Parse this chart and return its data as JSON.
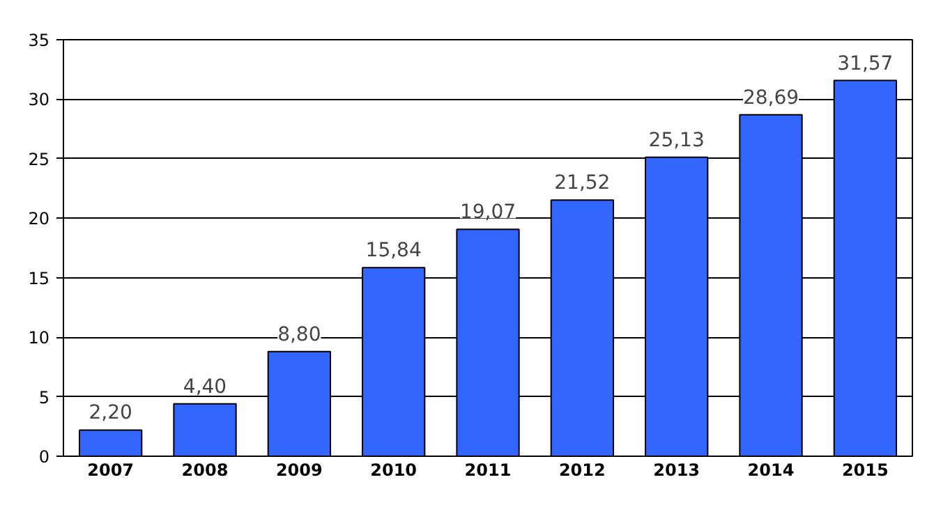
{
  "chart_data": {
    "type": "bar",
    "categories": [
      "2007",
      "2008",
      "2009",
      "2010",
      "2011",
      "2012",
      "2013",
      "2014",
      "2015"
    ],
    "values": [
      2.2,
      4.4,
      8.8,
      15.84,
      19.07,
      21.52,
      25.13,
      28.69,
      31.57
    ],
    "value_labels": [
      "2,20",
      "4,40",
      "8,80",
      "15,84",
      "19,07",
      "21,52",
      "25,13",
      "28,69",
      "31,57"
    ],
    "color": "#3366ff",
    "ylim": [
      0,
      35
    ],
    "yticks": [
      0,
      5,
      10,
      15,
      20,
      25,
      30,
      35
    ],
    "grid": "y"
  }
}
